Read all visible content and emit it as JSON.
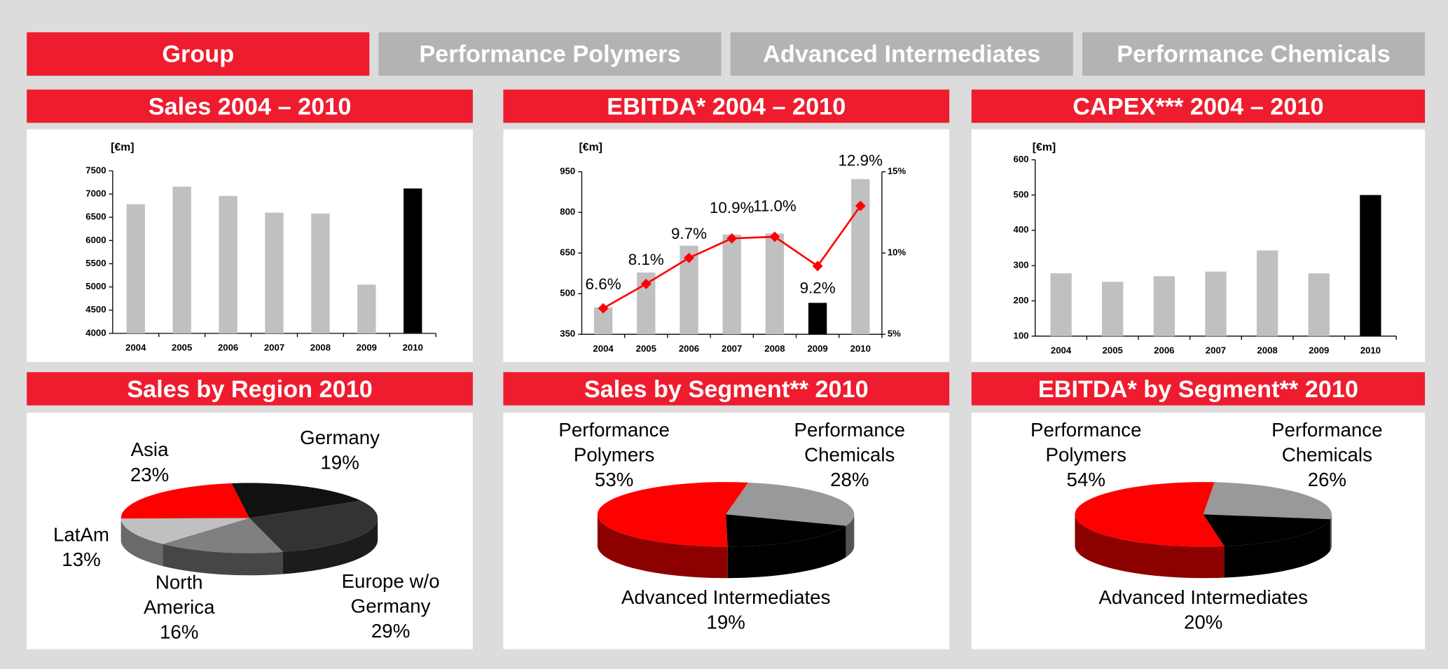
{
  "tabs": [
    "Group",
    "Performance Polymers",
    "Advanced Intermediates",
    "Performance Chemicals"
  ],
  "active_tab": 0,
  "chart_data": [
    {
      "type": "bar",
      "title": "Sales 2004 – 2010",
      "unit": "[€m]",
      "categories": [
        "2004",
        "2005",
        "2006",
        "2007",
        "2008",
        "2009",
        "2010"
      ],
      "values": [
        6780,
        7160,
        6960,
        6600,
        6580,
        5050,
        7120
      ],
      "colors": [
        "#c0c0c0",
        "#c0c0c0",
        "#c0c0c0",
        "#c0c0c0",
        "#c0c0c0",
        "#c0c0c0",
        "#000000"
      ],
      "ylim": [
        4000,
        7500
      ],
      "yticks": [
        4000,
        4500,
        5000,
        5500,
        6000,
        6500,
        7000,
        7500
      ]
    },
    {
      "type": "combo",
      "title": "EBITDA* 2004 – 2010",
      "unit": "[€m]",
      "categories": [
        "2004",
        "2005",
        "2006",
        "2007",
        "2008",
        "2009",
        "2010"
      ],
      "series": [
        {
          "values": [
            449,
            578,
            677,
            718,
            722,
            466,
            923
          ],
          "colors": [
            "#c0c0c0",
            "#c0c0c0",
            "#c0c0c0",
            "#c0c0c0",
            "#c0c0c0",
            "#000000",
            "#c0c0c0"
          ]
        },
        {
          "values": [
            6.6,
            8.1,
            9.7,
            10.9,
            11.0,
            9.2,
            12.9
          ],
          "value_labels": [
            "6.6%",
            "8.1%",
            "9.7%",
            "10.9%",
            "11.0%",
            "9.2%",
            "12.9%"
          ],
          "color": "#ff0000",
          "axis": "y2"
        }
      ],
      "ylim": [
        350,
        950
      ],
      "yticks": [
        350,
        500,
        650,
        800,
        950
      ],
      "y2lim": [
        5,
        15
      ],
      "y2ticks": [
        {
          "value": 5,
          "label": "5%"
        },
        {
          "value": 10,
          "label": "10%"
        },
        {
          "value": 15,
          "label": "15%"
        }
      ]
    },
    {
      "type": "bar",
      "title": "CAPEX*** 2004 – 2010",
      "unit": "[€m]",
      "categories": [
        "2004",
        "2005",
        "2006",
        "2007",
        "2008",
        "2009",
        "2010"
      ],
      "values": [
        278,
        254,
        270,
        283,
        343,
        278,
        500
      ],
      "colors": [
        "#c0c0c0",
        "#c0c0c0",
        "#c0c0c0",
        "#c0c0c0",
        "#c0c0c0",
        "#c0c0c0",
        "#000000"
      ],
      "ylim": [
        100,
        600
      ],
      "yticks": [
        100,
        200,
        300,
        400,
        500,
        600
      ]
    },
    {
      "type": "pie",
      "title": "Sales by Region 2010",
      "categories": [
        "Germany",
        "Europe w/o Germany",
        "North America",
        "LatAm",
        "Asia"
      ],
      "values": [
        19,
        29,
        16,
        13,
        23
      ],
      "value_labels": [
        "19%",
        "29%",
        "16%",
        "13%",
        "23%"
      ],
      "colors": [
        "#111111",
        "#333333",
        "#808080",
        "#c0c0c0",
        "#ff0000"
      ]
    },
    {
      "type": "pie",
      "title": "Sales by Segment** 2010",
      "categories": [
        "Performance Chemicals",
        "Advanced Intermediates",
        "Performance Polymers"
      ],
      "values": [
        28,
        19,
        53
      ],
      "value_labels": [
        "28%",
        "19%",
        "53%"
      ],
      "colors": [
        "#999999",
        "#000000",
        "#ff0000"
      ]
    },
    {
      "type": "pie",
      "title": "EBITDA* by Segment** 2010",
      "categories": [
        "Performance Chemicals",
        "Advanced Intermediates",
        "Performance Polymers"
      ],
      "values": [
        26,
        20,
        54
      ],
      "value_labels": [
        "26%",
        "20%",
        "54%"
      ],
      "colors": [
        "#999999",
        "#000000",
        "#ff0000"
      ]
    }
  ]
}
